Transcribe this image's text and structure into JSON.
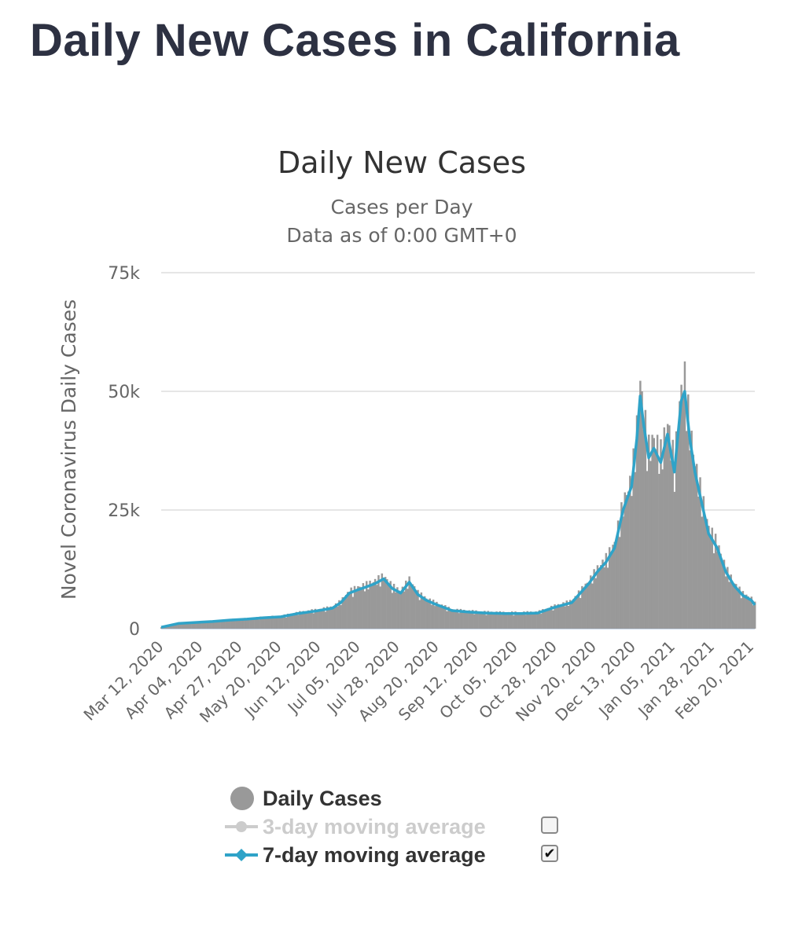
{
  "page": {
    "title": "Daily New Cases in California"
  },
  "chart_data": {
    "type": "bar",
    "title": "Daily New Cases",
    "subtitle": "Cases per Day",
    "subtitle2": "Data as of 0:00 GMT+0",
    "ylabel": "Novel Coronavirus Daily Cases",
    "xlabel": "",
    "ylim": [
      0,
      75000
    ],
    "y_ticks": [
      0,
      25000,
      50000,
      75000
    ],
    "y_tick_labels": [
      "0",
      "25k",
      "50k",
      "75k"
    ],
    "x_tick_labels": [
      "Mar 12, 2020",
      "Apr 04, 2020",
      "Apr 27, 2020",
      "May 20, 2020",
      "Jun 12, 2020",
      "Jul 05, 2020",
      "Jul 28, 2020",
      "Aug 20, 2020",
      "Sep 12, 2020",
      "Oct 05, 2020",
      "Oct 28, 2020",
      "Nov 20, 2020",
      "Dec 13, 2020",
      "Jan 05, 2021",
      "Jan 28, 2021",
      "Feb 20, 2021"
    ],
    "x_tick_day_index": [
      0,
      23,
      46,
      69,
      92,
      115,
      138,
      161,
      184,
      207,
      230,
      253,
      276,
      299,
      322,
      345
    ],
    "start_date": "Mar 12, 2020",
    "days": 348,
    "series": [
      {
        "name": "Daily Cases",
        "kind": "bar",
        "color": "#999999",
        "days": [
          0,
          10,
          20,
          30,
          40,
          50,
          60,
          70,
          80,
          90,
          100,
          105,
          110,
          115,
          120,
          125,
          130,
          135,
          140,
          145,
          150,
          155,
          160,
          165,
          170,
          180,
          190,
          200,
          210,
          220,
          230,
          240,
          245,
          250,
          255,
          260,
          265,
          270,
          275,
          278,
          280,
          282,
          285,
          288,
          292,
          296,
          300,
          304,
          306,
          309,
          312,
          315,
          320,
          325,
          330,
          335,
          340,
          345,
          347
        ],
        "values": [
          300,
          1100,
          1300,
          1500,
          1800,
          2000,
          2300,
          2500,
          3200,
          3700,
          4300,
          5500,
          7500,
          8200,
          8800,
          9500,
          10500,
          8500,
          7500,
          9800,
          7200,
          6000,
          5200,
          4500,
          3800,
          3500,
          3300,
          3200,
          3200,
          3300,
          4500,
          5500,
          7500,
          9500,
          12000,
          14000,
          17000,
          25000,
          30000,
          40000,
          49000,
          43000,
          36000,
          38000,
          35000,
          41000,
          33000,
          48000,
          50000,
          40000,
          33000,
          28000,
          20000,
          17000,
          12000,
          9000,
          7000,
          6000,
          5000
        ]
      },
      {
        "name": "3-day moving average",
        "kind": "line",
        "color": "#cccccc",
        "visible": false
      },
      {
        "name": "7-day moving average",
        "kind": "line",
        "color": "#2fa3c8",
        "visible": true,
        "days": [
          0,
          10,
          20,
          30,
          40,
          50,
          60,
          70,
          80,
          90,
          100,
          105,
          110,
          115,
          120,
          125,
          130,
          135,
          140,
          145,
          150,
          155,
          160,
          165,
          170,
          180,
          190,
          200,
          210,
          220,
          230,
          240,
          245,
          250,
          255,
          260,
          265,
          270,
          275,
          278,
          280,
          282,
          285,
          288,
          292,
          296,
          300,
          304,
          306,
          309,
          312,
          315,
          320,
          325,
          330,
          335,
          340,
          345,
          347
        ],
        "values": [
          300,
          1100,
          1300,
          1500,
          1800,
          2000,
          2300,
          2500,
          3200,
          3700,
          4300,
          5500,
          7500,
          8200,
          8800,
          9500,
          10500,
          8500,
          7500,
          9800,
          7200,
          6000,
          5200,
          4500,
          3800,
          3500,
          3300,
          3200,
          3200,
          3300,
          4500,
          5500,
          7500,
          9500,
          12000,
          14000,
          17000,
          25000,
          30000,
          40000,
          49000,
          43000,
          36000,
          38000,
          35000,
          41000,
          33000,
          48000,
          50000,
          40000,
          33000,
          28000,
          20000,
          17000,
          12000,
          9000,
          7000,
          6000,
          5000
        ]
      }
    ],
    "legend": [
      {
        "label": "Daily Cases",
        "enabled": true,
        "has_checkbox": false
      },
      {
        "label": "3-day moving average",
        "enabled": false,
        "has_checkbox": true,
        "checked": false
      },
      {
        "label": "7-day moving average",
        "enabled": true,
        "has_checkbox": true,
        "checked": true
      }
    ],
    "checkmark": "✔"
  }
}
